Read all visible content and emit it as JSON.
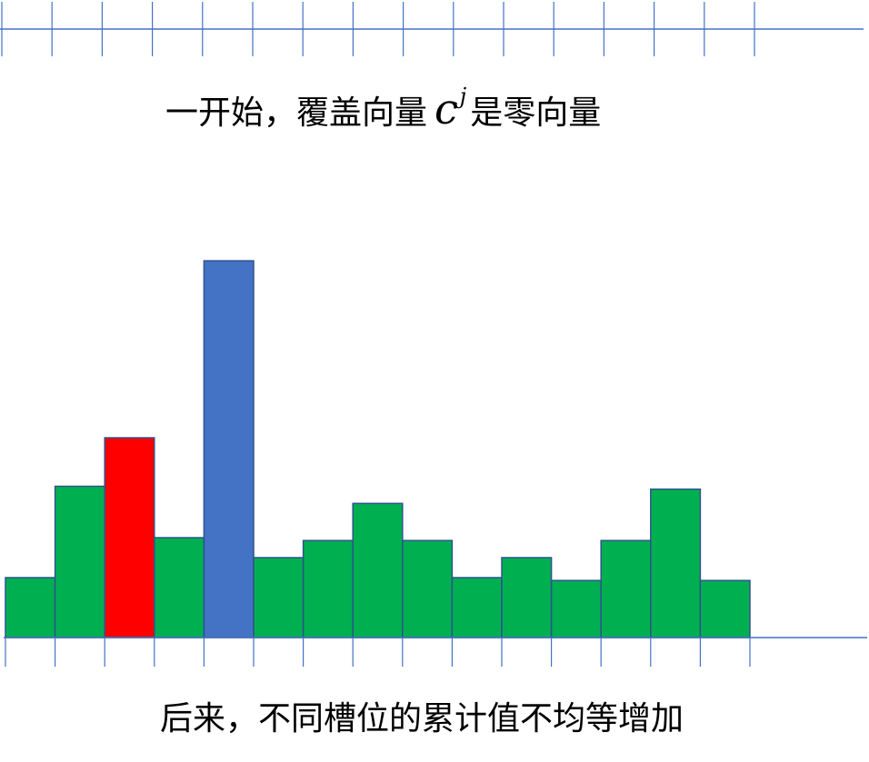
{
  "captions": {
    "top_before": "一开始，覆盖向量",
    "top_symbol": "c",
    "top_superscript": "j",
    "top_after": "是零向量",
    "bottom": "后来，不同槽位的累计值不均等增加"
  },
  "colors": {
    "axis": "#4472c4",
    "bar_border": "#2f528f",
    "green": "#00b050",
    "red": "#ff0000",
    "blue": "#4472c4"
  },
  "top_ruler": {
    "slot_count": 15
  },
  "chart_data": {
    "type": "bar",
    "values": [
      2.1,
      5.3,
      7.0,
      3.5,
      13.2,
      2.8,
      3.4,
      4.7,
      3.4,
      2.1,
      2.8,
      2.0,
      3.4,
      5.2,
      2.0
    ],
    "colors": [
      "green",
      "green",
      "red",
      "green",
      "blue",
      "green",
      "green",
      "green",
      "green",
      "green",
      "green",
      "green",
      "green",
      "green",
      "green"
    ],
    "ylim": [
      0,
      14
    ],
    "grid": false
  }
}
